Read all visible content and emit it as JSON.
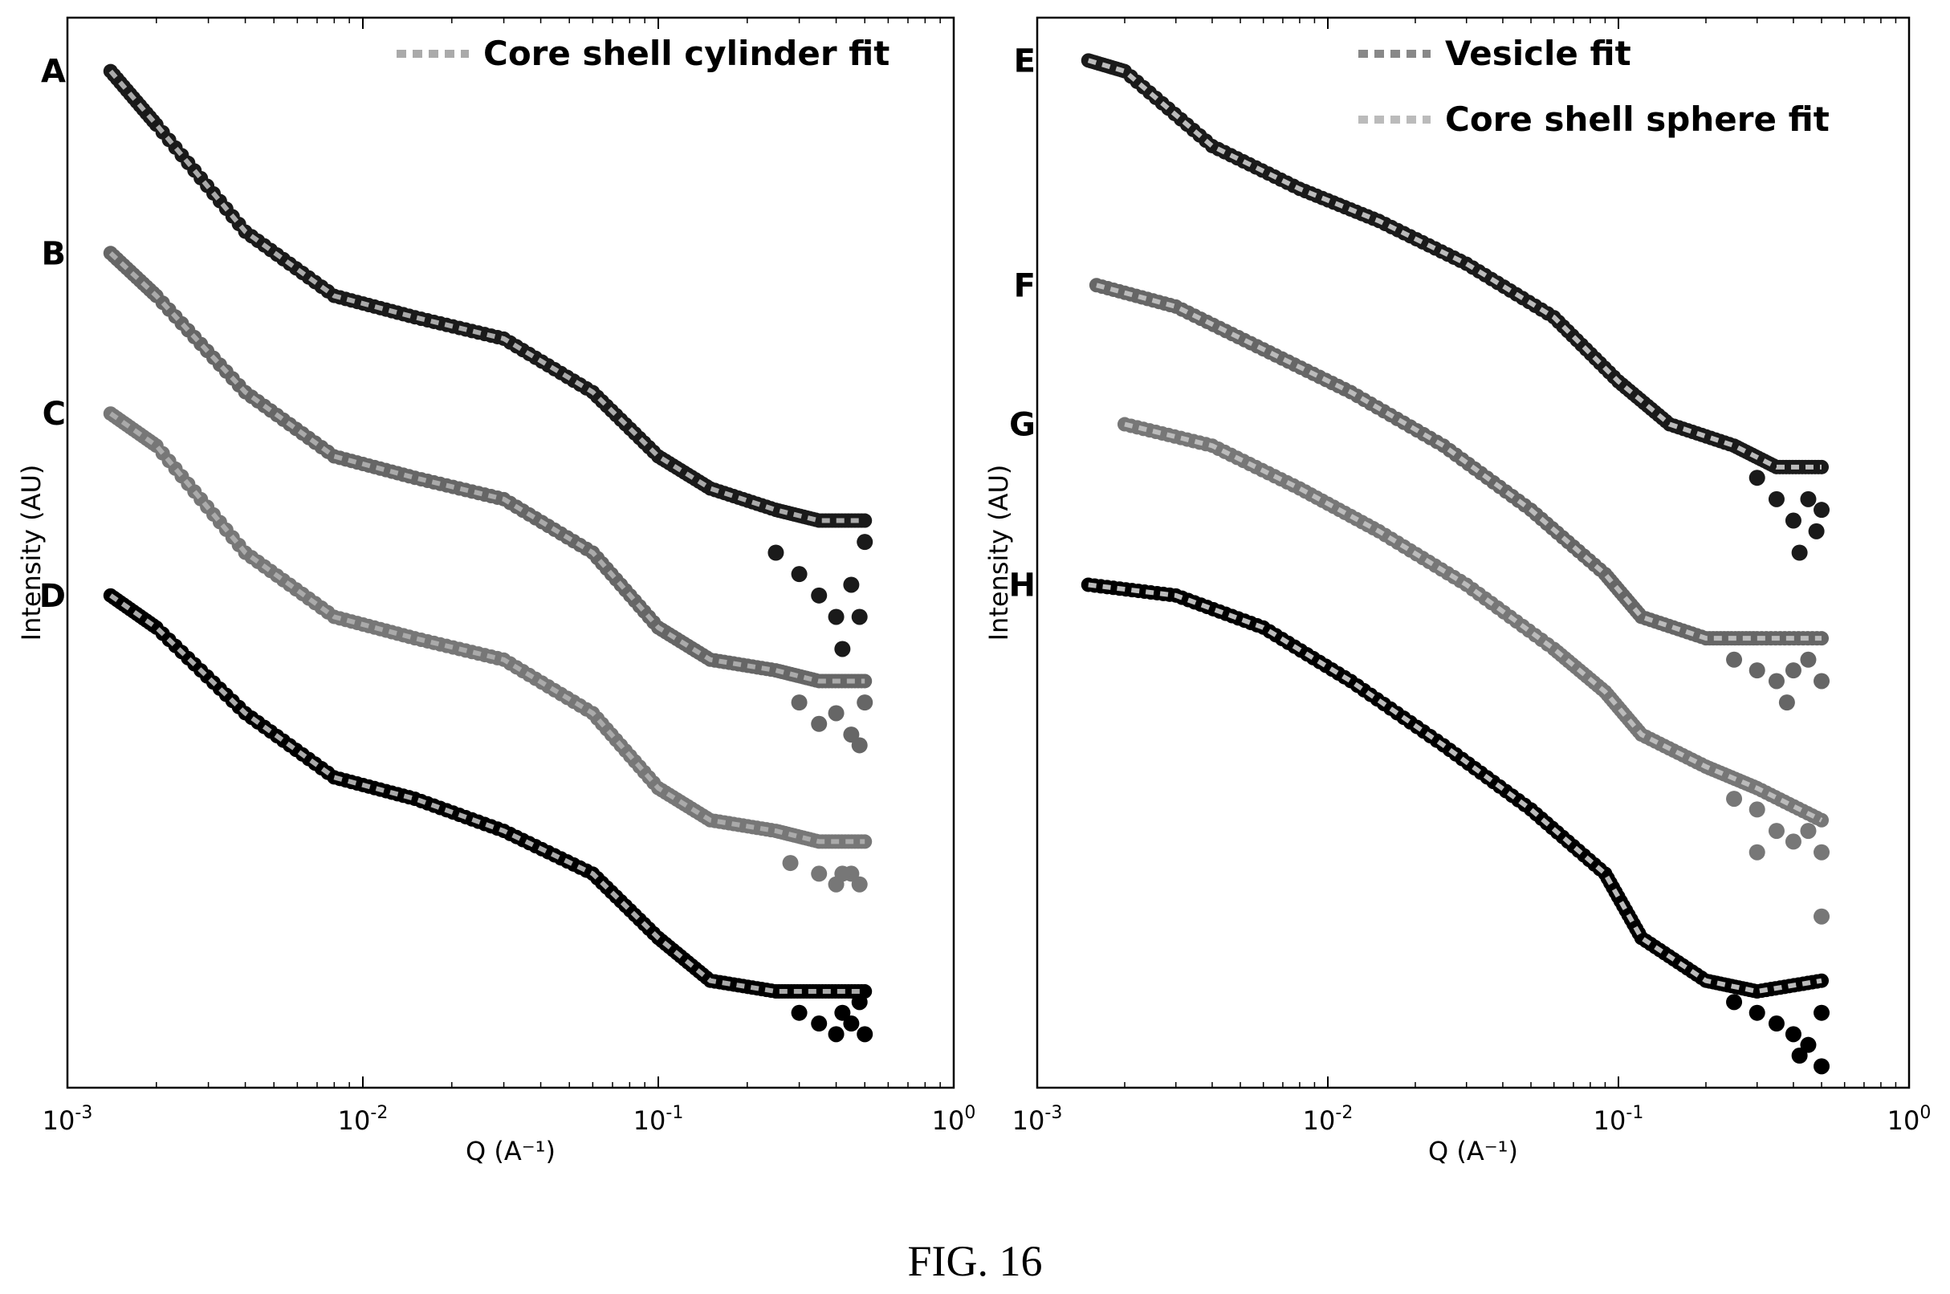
{
  "caption": "FIG. 16",
  "chart_data": [
    {
      "type": "scatter",
      "title": "",
      "xlabel": "Q (A⁻¹)",
      "ylabel": "Intensity (AU)",
      "xscale": "log",
      "xlim": [
        0.001,
        1
      ],
      "xticks": [
        {
          "value": 0.001,
          "base": "10",
          "exp": "-3"
        },
        {
          "value": 0.01,
          "base": "10",
          "exp": "-2"
        },
        {
          "value": 0.1,
          "base": "10",
          "exp": "-1"
        },
        {
          "value": 1,
          "base": "10",
          "exp": "0"
        }
      ],
      "ylim": [
        0,
        1
      ],
      "y_ticks_shown": false,
      "legend": {
        "placement": "top-right",
        "entries": [
          {
            "label": "Core shell cylinder fit",
            "color": "#aaaaaa",
            "style": "dashed"
          }
        ]
      },
      "series": [
        {
          "name": "A",
          "color": "#1a1a1a",
          "points": [
            [
              0.0014,
              0.95
            ],
            [
              0.002,
              0.9
            ],
            [
              0.004,
              0.8
            ],
            [
              0.008,
              0.74
            ],
            [
              0.015,
              0.72
            ],
            [
              0.03,
              0.7
            ],
            [
              0.06,
              0.65
            ],
            [
              0.1,
              0.59
            ],
            [
              0.15,
              0.56
            ],
            [
              0.25,
              0.54
            ],
            [
              0.35,
              0.53
            ],
            [
              0.5,
              0.53
            ]
          ],
          "noise": [
            [
              0.25,
              0.5
            ],
            [
              0.3,
              0.48
            ],
            [
              0.35,
              0.46
            ],
            [
              0.4,
              0.44
            ],
            [
              0.45,
              0.47
            ],
            [
              0.42,
              0.41
            ],
            [
              0.48,
              0.44
            ],
            [
              0.5,
              0.51
            ]
          ]
        },
        {
          "name": "B",
          "color": "#666666",
          "points": [
            [
              0.0014,
              0.78
            ],
            [
              0.002,
              0.74
            ],
            [
              0.004,
              0.65
            ],
            [
              0.008,
              0.59
            ],
            [
              0.015,
              0.57
            ],
            [
              0.03,
              0.55
            ],
            [
              0.06,
              0.5
            ],
            [
              0.1,
              0.43
            ],
            [
              0.15,
              0.4
            ],
            [
              0.25,
              0.39
            ],
            [
              0.35,
              0.38
            ],
            [
              0.5,
              0.38
            ]
          ],
          "noise": [
            [
              0.3,
              0.36
            ],
            [
              0.35,
              0.34
            ],
            [
              0.4,
              0.35
            ],
            [
              0.45,
              0.33
            ],
            [
              0.5,
              0.36
            ],
            [
              0.48,
              0.32
            ]
          ]
        },
        {
          "name": "C",
          "color": "#777777",
          "points": [
            [
              0.0014,
              0.63
            ],
            [
              0.002,
              0.6
            ],
            [
              0.004,
              0.5
            ],
            [
              0.008,
              0.44
            ],
            [
              0.015,
              0.42
            ],
            [
              0.03,
              0.4
            ],
            [
              0.06,
              0.35
            ],
            [
              0.1,
              0.28
            ],
            [
              0.15,
              0.25
            ],
            [
              0.25,
              0.24
            ],
            [
              0.35,
              0.23
            ],
            [
              0.5,
              0.23
            ]
          ],
          "noise": [
            [
              0.28,
              0.21
            ],
            [
              0.35,
              0.2
            ],
            [
              0.4,
              0.19
            ],
            [
              0.45,
              0.2
            ],
            [
              0.48,
              0.19
            ],
            [
              0.42,
              0.2
            ]
          ]
        },
        {
          "name": "D",
          "color": "#000000",
          "points": [
            [
              0.0014,
              0.46
            ],
            [
              0.002,
              0.43
            ],
            [
              0.004,
              0.35
            ],
            [
              0.008,
              0.29
            ],
            [
              0.015,
              0.27
            ],
            [
              0.03,
              0.24
            ],
            [
              0.06,
              0.2
            ],
            [
              0.1,
              0.14
            ],
            [
              0.15,
              0.1
            ],
            [
              0.25,
              0.09
            ],
            [
              0.35,
              0.09
            ],
            [
              0.5,
              0.09
            ]
          ],
          "noise": [
            [
              0.3,
              0.07
            ],
            [
              0.35,
              0.06
            ],
            [
              0.4,
              0.05
            ],
            [
              0.45,
              0.06
            ],
            [
              0.5,
              0.05
            ],
            [
              0.42,
              0.07
            ],
            [
              0.48,
              0.08
            ]
          ]
        }
      ]
    },
    {
      "type": "scatter",
      "title": "",
      "xlabel": "Q (A⁻¹)",
      "ylabel": "Intensity (AU)",
      "xscale": "log",
      "xlim": [
        0.001,
        1
      ],
      "xticks": [
        {
          "value": 0.001,
          "base": "10",
          "exp": "-3"
        },
        {
          "value": 0.01,
          "base": "10",
          "exp": "-2"
        },
        {
          "value": 0.1,
          "base": "10",
          "exp": "-1"
        },
        {
          "value": 1,
          "base": "10",
          "exp": "0"
        }
      ],
      "ylim": [
        0,
        1
      ],
      "y_ticks_shown": false,
      "legend": {
        "placement": "top-right",
        "entries": [
          {
            "label": "Vesicle fit",
            "color": "#888888",
            "style": "dashed"
          },
          {
            "label": "Core shell sphere fit",
            "color": "#bbbbbb",
            "style": "dashed"
          }
        ]
      },
      "series": [
        {
          "name": "E",
          "color": "#1a1a1a",
          "points": [
            [
              0.0015,
              0.96
            ],
            [
              0.002,
              0.95
            ],
            [
              0.004,
              0.88
            ],
            [
              0.008,
              0.84
            ],
            [
              0.015,
              0.81
            ],
            [
              0.03,
              0.77
            ],
            [
              0.06,
              0.72
            ],
            [
              0.1,
              0.66
            ],
            [
              0.15,
              0.62
            ],
            [
              0.25,
              0.6
            ],
            [
              0.35,
              0.58
            ],
            [
              0.5,
              0.58
            ]
          ],
          "noise": [
            [
              0.3,
              0.57
            ],
            [
              0.35,
              0.55
            ],
            [
              0.4,
              0.53
            ],
            [
              0.45,
              0.55
            ],
            [
              0.5,
              0.54
            ],
            [
              0.42,
              0.5
            ],
            [
              0.48,
              0.52
            ]
          ]
        },
        {
          "name": "F",
          "color": "#666666",
          "points": [
            [
              0.0016,
              0.75
            ],
            [
              0.003,
              0.73
            ],
            [
              0.006,
              0.69
            ],
            [
              0.012,
              0.65
            ],
            [
              0.025,
              0.6
            ],
            [
              0.05,
              0.54
            ],
            [
              0.09,
              0.48
            ],
            [
              0.12,
              0.44
            ],
            [
              0.2,
              0.42
            ],
            [
              0.3,
              0.42
            ],
            [
              0.5,
              0.42
            ]
          ],
          "noise": [
            [
              0.25,
              0.4
            ],
            [
              0.3,
              0.39
            ],
            [
              0.35,
              0.38
            ],
            [
              0.4,
              0.39
            ],
            [
              0.45,
              0.4
            ],
            [
              0.5,
              0.38
            ],
            [
              0.38,
              0.36
            ]
          ]
        },
        {
          "name": "G",
          "color": "#777777",
          "points": [
            [
              0.002,
              0.62
            ],
            [
              0.004,
              0.6
            ],
            [
              0.008,
              0.56
            ],
            [
              0.015,
              0.52
            ],
            [
              0.03,
              0.47
            ],
            [
              0.06,
              0.41
            ],
            [
              0.09,
              0.37
            ],
            [
              0.12,
              0.33
            ],
            [
              0.2,
              0.3
            ],
            [
              0.3,
              0.28
            ],
            [
              0.5,
              0.25
            ]
          ],
          "noise": [
            [
              0.25,
              0.27
            ],
            [
              0.3,
              0.26
            ],
            [
              0.35,
              0.24
            ],
            [
              0.4,
              0.23
            ],
            [
              0.45,
              0.24
            ],
            [
              0.5,
              0.22
            ],
            [
              0.3,
              0.22
            ],
            [
              0.5,
              0.16
            ]
          ]
        },
        {
          "name": "H",
          "color": "#000000",
          "points": [
            [
              0.0015,
              0.47
            ],
            [
              0.003,
              0.46
            ],
            [
              0.006,
              0.43
            ],
            [
              0.012,
              0.38
            ],
            [
              0.025,
              0.32
            ],
            [
              0.05,
              0.26
            ],
            [
              0.09,
              0.2
            ],
            [
              0.12,
              0.14
            ],
            [
              0.2,
              0.1
            ],
            [
              0.3,
              0.09
            ],
            [
              0.5,
              0.1
            ]
          ],
          "noise": [
            [
              0.25,
              0.08
            ],
            [
              0.3,
              0.07
            ],
            [
              0.35,
              0.06
            ],
            [
              0.4,
              0.05
            ],
            [
              0.45,
              0.04
            ],
            [
              0.5,
              0.07
            ],
            [
              0.42,
              0.03
            ],
            [
              0.5,
              0.02
            ]
          ]
        }
      ]
    }
  ]
}
